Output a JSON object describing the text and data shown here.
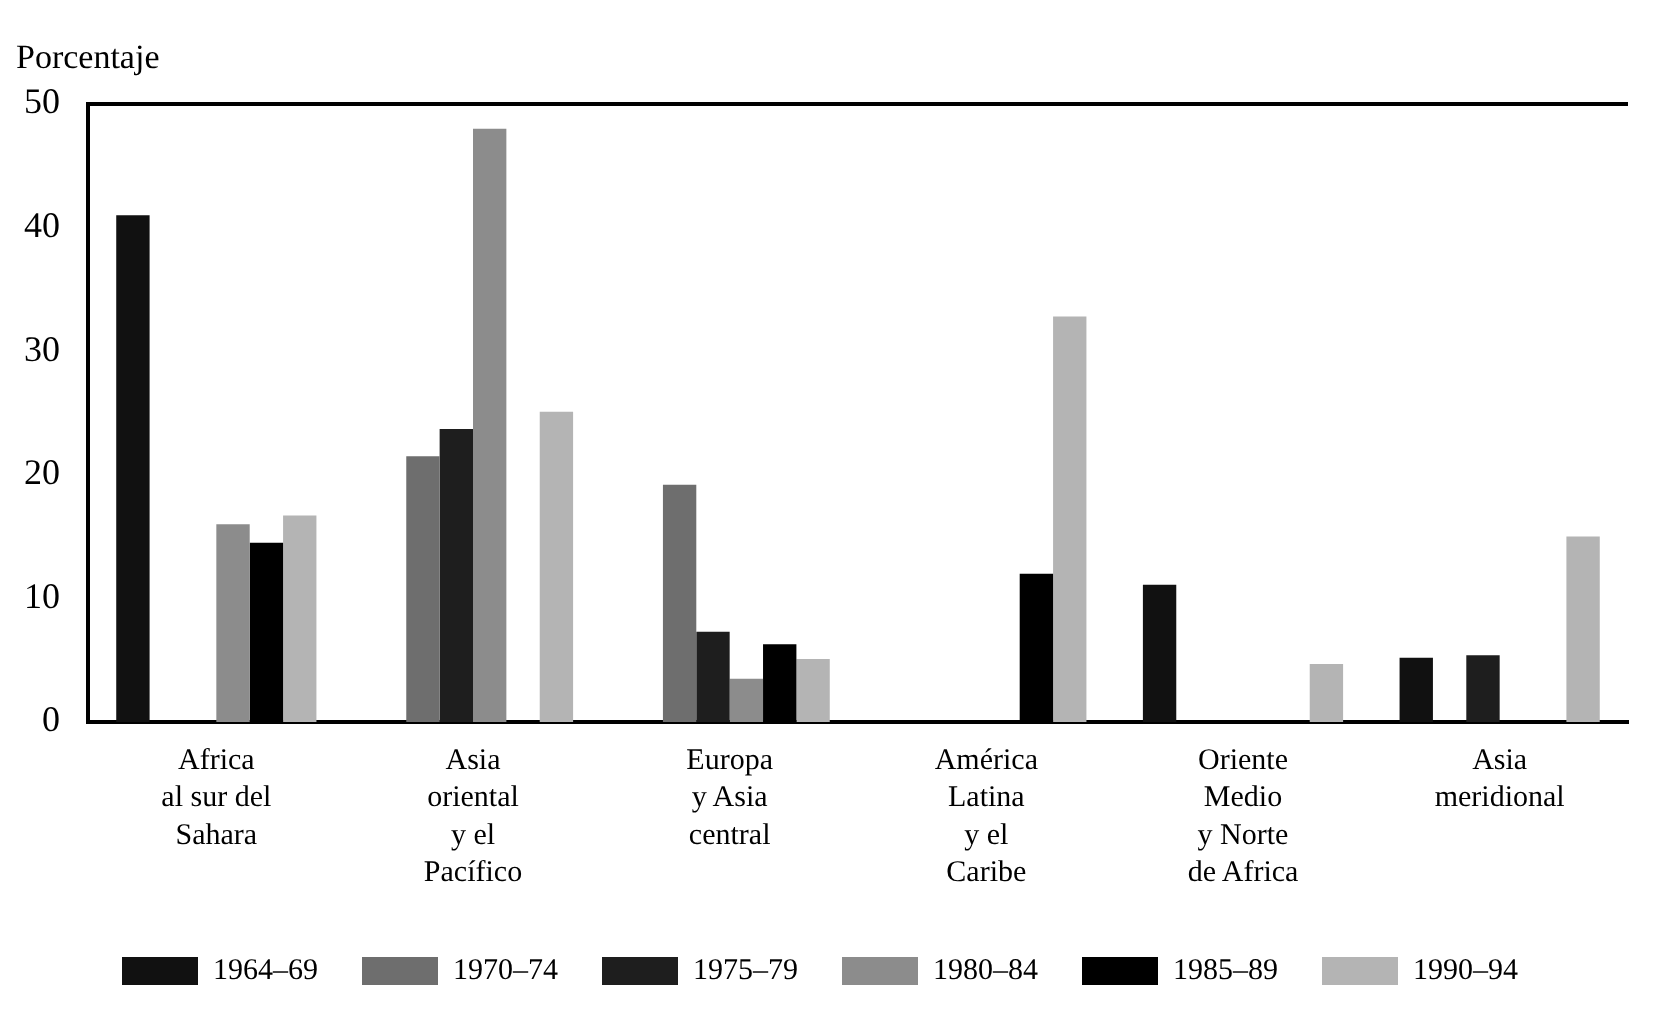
{
  "chart_data": {
    "type": "bar",
    "ylabel": "Porcentaje",
    "categories": [
      "Africa\nal sur del\nSahara",
      "Asia\noriental\ny el\nPacífico",
      "Europa\ny Asia\ncentral",
      "América\nLatina\ny el\nCaribe",
      "Oriente\nMedio\ny Norte\nde Africa",
      "Asia\nmeridional"
    ],
    "series": [
      {
        "name": "1964–69",
        "color": "#111111",
        "values": [
          41,
          null,
          null,
          null,
          11.1,
          5.2
        ]
      },
      {
        "name": "1970–74",
        "color": "#6e6e6e",
        "values": [
          null,
          21.5,
          19.2,
          null,
          null,
          null
        ]
      },
      {
        "name": "1975–79",
        "color": "#1e1e1e",
        "values": [
          null,
          23.7,
          7.3,
          null,
          null,
          5.4
        ]
      },
      {
        "name": "1980–84",
        "color": "#8c8c8c",
        "values": [
          16,
          48,
          3.5,
          null,
          null,
          null
        ]
      },
      {
        "name": "1985–89",
        "color": "#000000",
        "values": [
          14.5,
          null,
          6.3,
          12,
          null,
          null
        ]
      },
      {
        "name": "1990–94",
        "color": "#b4b4b4",
        "values": [
          16.7,
          25.1,
          5.1,
          32.8,
          4.7,
          15
        ]
      }
    ],
    "ylim": [
      0,
      50
    ],
    "yticks": [
      0,
      10,
      20,
      30,
      40,
      50
    ],
    "grid": false,
    "legend": "bottom"
  }
}
